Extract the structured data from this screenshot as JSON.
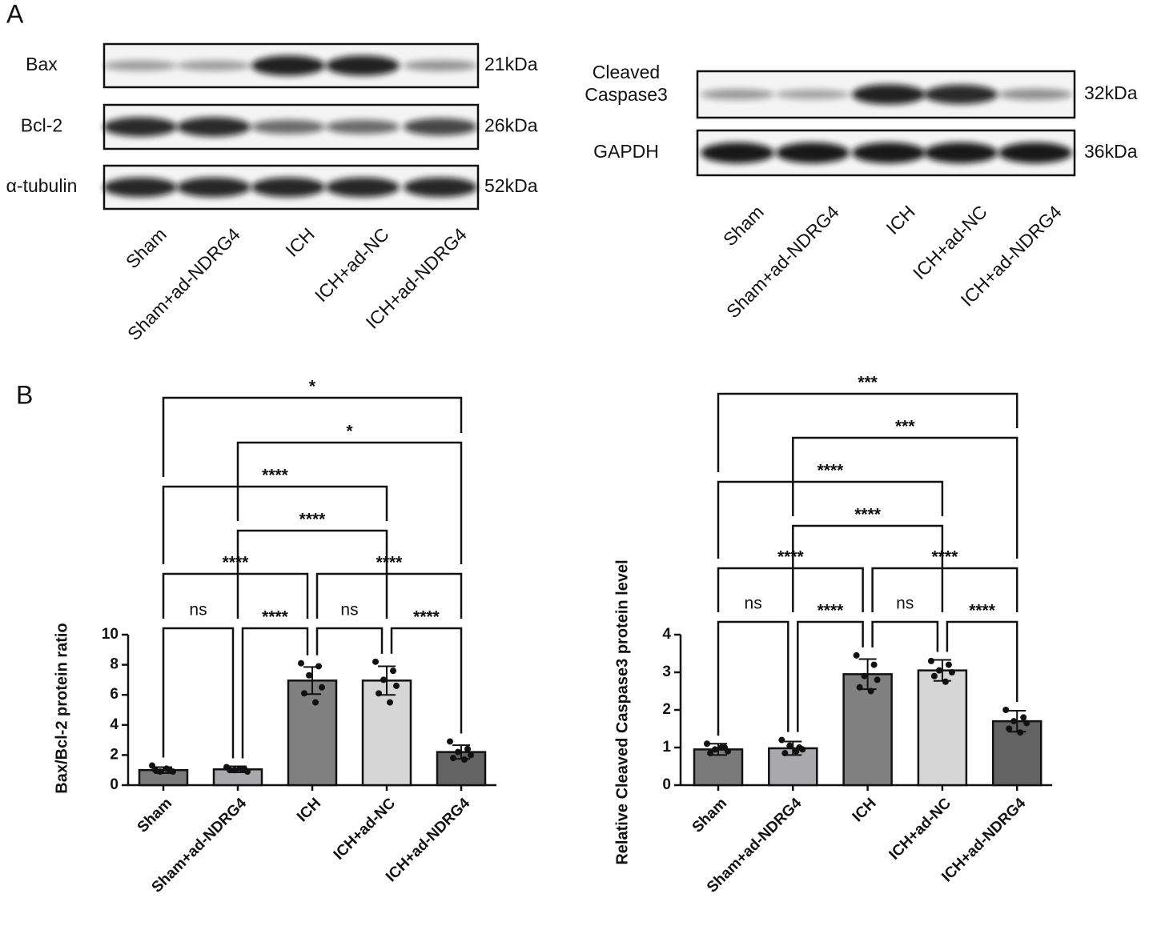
{
  "panel_labels": [
    "A",
    "B"
  ],
  "blots": [
    {
      "rows": [
        {
          "label": [
            "Bax"
          ],
          "size": "21kDa"
        },
        {
          "label": [
            "Bcl-2"
          ],
          "size": "26kDa"
        },
        {
          "label": [
            "α-tubulin"
          ],
          "size": "52kDa"
        }
      ],
      "lanes": [
        "Sham",
        "Sham+ad-NDRG4",
        "ICH",
        "ICH+ad-NC",
        "ICH+ad-NDRG4"
      ]
    },
    {
      "rows": [
        {
          "label": [
            "Cleaved",
            "Caspase3"
          ],
          "size": "32kDa"
        },
        {
          "label": [
            "GAPDH"
          ],
          "size": "36kDa"
        }
      ],
      "lanes": [
        "Sham",
        "Sham+ad-NDRG4",
        "ICH",
        "ICH+ad-NC",
        "ICH+ad-NDRG4"
      ]
    }
  ],
  "chart_data": [
    {
      "type": "bar",
      "ylabel": "Bax/Bcl-2 protein ratio",
      "categories": [
        "Sham",
        "Sham+ad-NDRG4",
        "ICH",
        "ICH+ad-NC",
        "ICH+ad-NDRG4"
      ],
      "values": [
        1.0,
        1.05,
        6.95,
        6.95,
        2.2
      ],
      "errors": [
        0.2,
        0.2,
        0.9,
        0.95,
        0.45
      ],
      "points": [
        [
          1.3,
          1.0,
          0.9,
          0.9,
          1.0,
          1.1
        ],
        [
          1.2,
          1.1,
          1.0,
          0.9,
          1.0,
          1.1
        ],
        [
          8.1,
          7.9,
          7.3,
          6.5,
          6.1,
          5.5
        ],
        [
          8.2,
          7.6,
          7.0,
          6.6,
          6.1,
          5.5
        ],
        [
          2.9,
          2.4,
          2.2,
          2.0,
          1.8,
          1.7
        ]
      ],
      "colors": [
        "#7a7a7a",
        "#a8a8ad",
        "#808080",
        "#d6d6d6",
        "#636363"
      ],
      "ylim": [
        0,
        10
      ],
      "yticks": [
        0,
        2,
        4,
        6,
        8,
        10
      ],
      "comparisons": [
        {
          "groups": [
            0,
            1
          ],
          "label": "ns"
        },
        {
          "groups": [
            1,
            2
          ],
          "label": "****"
        },
        {
          "groups": [
            2,
            3
          ],
          "label": "ns"
        },
        {
          "groups": [
            3,
            4
          ],
          "label": "****"
        },
        {
          "groups": [
            0,
            2
          ],
          "label": "****"
        },
        {
          "groups": [
            2,
            4
          ],
          "label": "****"
        },
        {
          "groups": [
            1,
            3
          ],
          "label": "****"
        },
        {
          "groups": [
            0,
            3
          ],
          "label": "****"
        },
        {
          "groups": [
            1,
            4
          ],
          "label": "*"
        },
        {
          "groups": [
            0,
            4
          ],
          "label": "*"
        }
      ]
    },
    {
      "type": "bar",
      "ylabel": "Relative Cleaved Caspase3 protein level",
      "categories": [
        "Sham",
        "Sham+ad-NDRG4",
        "ICH",
        "ICH+ad-NC",
        "ICH+ad-NDRG4"
      ],
      "values": [
        0.95,
        0.98,
        2.95,
        3.05,
        1.7
      ],
      "errors": [
        0.15,
        0.18,
        0.4,
        0.28,
        0.28
      ],
      "points": [
        [
          1.1,
          1.0,
          0.95,
          0.9,
          0.85,
          1.0
        ],
        [
          1.2,
          1.0,
          1.05,
          0.95,
          0.85,
          0.9
        ],
        [
          3.45,
          3.2,
          2.9,
          2.8,
          2.6,
          2.5
        ],
        [
          3.3,
          3.2,
          3.05,
          3.0,
          2.9,
          2.75
        ],
        [
          2.0,
          1.8,
          1.7,
          1.65,
          1.5,
          1.4
        ]
      ],
      "colors": [
        "#7a7a7a",
        "#a8a8ad",
        "#808080",
        "#d6d6d6",
        "#636363"
      ],
      "ylim": [
        0,
        4
      ],
      "yticks": [
        0,
        1,
        2,
        3,
        4
      ],
      "comparisons": [
        {
          "groups": [
            0,
            1
          ],
          "label": "ns"
        },
        {
          "groups": [
            1,
            2
          ],
          "label": "****"
        },
        {
          "groups": [
            2,
            3
          ],
          "label": "ns"
        },
        {
          "groups": [
            3,
            4
          ],
          "label": "****"
        },
        {
          "groups": [
            0,
            2
          ],
          "label": "****"
        },
        {
          "groups": [
            2,
            4
          ],
          "label": "****"
        },
        {
          "groups": [
            1,
            3
          ],
          "label": "****"
        },
        {
          "groups": [
            0,
            3
          ],
          "label": "****"
        },
        {
          "groups": [
            1,
            4
          ],
          "label": "***"
        },
        {
          "groups": [
            0,
            4
          ],
          "label": "***"
        }
      ]
    }
  ]
}
